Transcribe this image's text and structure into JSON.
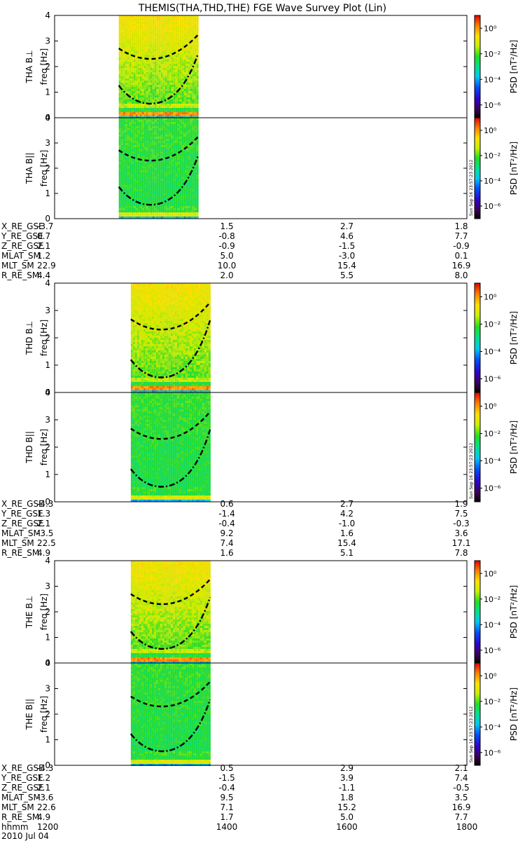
{
  "chart_data": {
    "type": "heatmap",
    "title": "THEMIS(THA,THD,THE) FGE Wave Survey Plot (Lin)",
    "colorbar": {
      "label": "PSD [nT²/Hz]",
      "tick_labels": [
        "10⁰",
        "10⁻²",
        "10⁻⁴",
        "10⁻⁶"
      ],
      "tick_exponents": [
        0,
        -2,
        -4,
        -6
      ],
      "colormap": "rainbow (black-purple-blue-cyan-green-yellow-orange-red)"
    },
    "stamp": "Sun Sep 16 23:57:23 2012",
    "yaxis": {
      "label": "freq [Hz]",
      "ticks": [
        0,
        1,
        2,
        3,
        4
      ],
      "ylim": [
        0,
        4
      ]
    },
    "xaxis": {
      "range": [
        1113,
        1800
      ],
      "tick_times": [
        1200,
        1400,
        1600,
        1800
      ]
    },
    "probes": [
      {
        "name": "THA",
        "panels": [
          {
            "id": "tha-perp",
            "ylabel": "THA B⊥",
            "data_start": 1220,
            "data_end": 1352,
            "min_freq_at": 1273
          },
          {
            "id": "tha-par",
            "ylabel": "THA B||",
            "data_start": 1220,
            "data_end": 1352,
            "min_freq_at": 1273
          }
        ],
        "ephemeris": [
          {
            "label": "X_RE_GSE",
            "values": [
              "-3.7",
              "1.5",
              "2.7",
              "1.8"
            ]
          },
          {
            "label": "Y_RE_GSE",
            "values": [
              "0.7",
              "-0.8",
              "4.6",
              "7.7"
            ]
          },
          {
            "label": "Z_RE_GSE",
            "values": [
              "2.1",
              "-0.9",
              "-1.5",
              "-0.9"
            ]
          },
          {
            "label": "MLAT_SM",
            "values": [
              "1.2",
              "5.0",
              "-3.0",
              "0.1"
            ]
          },
          {
            "label": "MLT_SM",
            "values": [
              "22.9",
              "10.0",
              "15.4",
              "16.9"
            ]
          },
          {
            "label": "R_RE_SM",
            "values": [
              "4.4",
              "2.0",
              "5.5",
              "8.0"
            ]
          }
        ]
      },
      {
        "name": "THD",
        "panels": [
          {
            "id": "thd-perp",
            "ylabel": "THD B⊥",
            "data_start": 1240,
            "data_end": 1372,
            "min_freq_at": 1291
          },
          {
            "id": "thd-par",
            "ylabel": "THD B||",
            "data_start": 1240,
            "data_end": 1372,
            "min_freq_at": 1291
          }
        ],
        "ephemeris": [
          {
            "label": "X_RE_GSE",
            "values": [
              "-4.3",
              "0.6",
              "2.7",
              "1.9"
            ]
          },
          {
            "label": "Y_RE_GSE",
            "values": [
              "1.3",
              "-1.4",
              "4.2",
              "7.5"
            ]
          },
          {
            "label": "Z_RE_GSE",
            "values": [
              "2.1",
              "-0.4",
              "-1.0",
              "-0.3"
            ]
          },
          {
            "label": "MLAT_SM",
            "values": [
              "-3.5",
              "9.2",
              "1.6",
              "3.6"
            ]
          },
          {
            "label": "MLT_SM",
            "values": [
              "22.5",
              "7.4",
              "15.4",
              "17.1"
            ]
          },
          {
            "label": "R_RE_SM",
            "values": [
              "4.9",
              "1.6",
              "5.1",
              "7.8"
            ]
          }
        ]
      },
      {
        "name": "THE",
        "panels": [
          {
            "id": "the-perp",
            "ylabel": "THE B⊥",
            "data_start": 1240,
            "data_end": 1372,
            "min_freq_at": 1292
          },
          {
            "id": "the-par",
            "ylabel": "THE B||",
            "data_start": 1240,
            "data_end": 1372,
            "min_freq_at": 1292
          }
        ],
        "ephemeris": [
          {
            "label": "X_RE_GSE",
            "values": [
              "-4.3",
              "0.5",
              "2.9",
              "2.1"
            ]
          },
          {
            "label": "Y_RE_GSE",
            "values": [
              "1.2",
              "-1.5",
              "3.9",
              "7.4"
            ]
          },
          {
            "label": "Z_RE_GSE",
            "values": [
              "2.1",
              "-0.4",
              "-1.1",
              "-0.5"
            ]
          },
          {
            "label": "MLAT_SM",
            "values": [
              "-3.6",
              "9.5",
              "1.8",
              "3.5"
            ]
          },
          {
            "label": "MLT_SM",
            "values": [
              "22.6",
              "7.1",
              "15.2",
              "16.9"
            ]
          },
          {
            "label": "R_RE_SM",
            "values": [
              "4.9",
              "1.7",
              "5.0",
              "7.7"
            ]
          }
        ]
      }
    ],
    "time_row": {
      "label": "hhmm",
      "values": [
        "1200",
        "1400",
        "1600",
        "1800"
      ]
    },
    "date": "2010 Jul 04"
  }
}
